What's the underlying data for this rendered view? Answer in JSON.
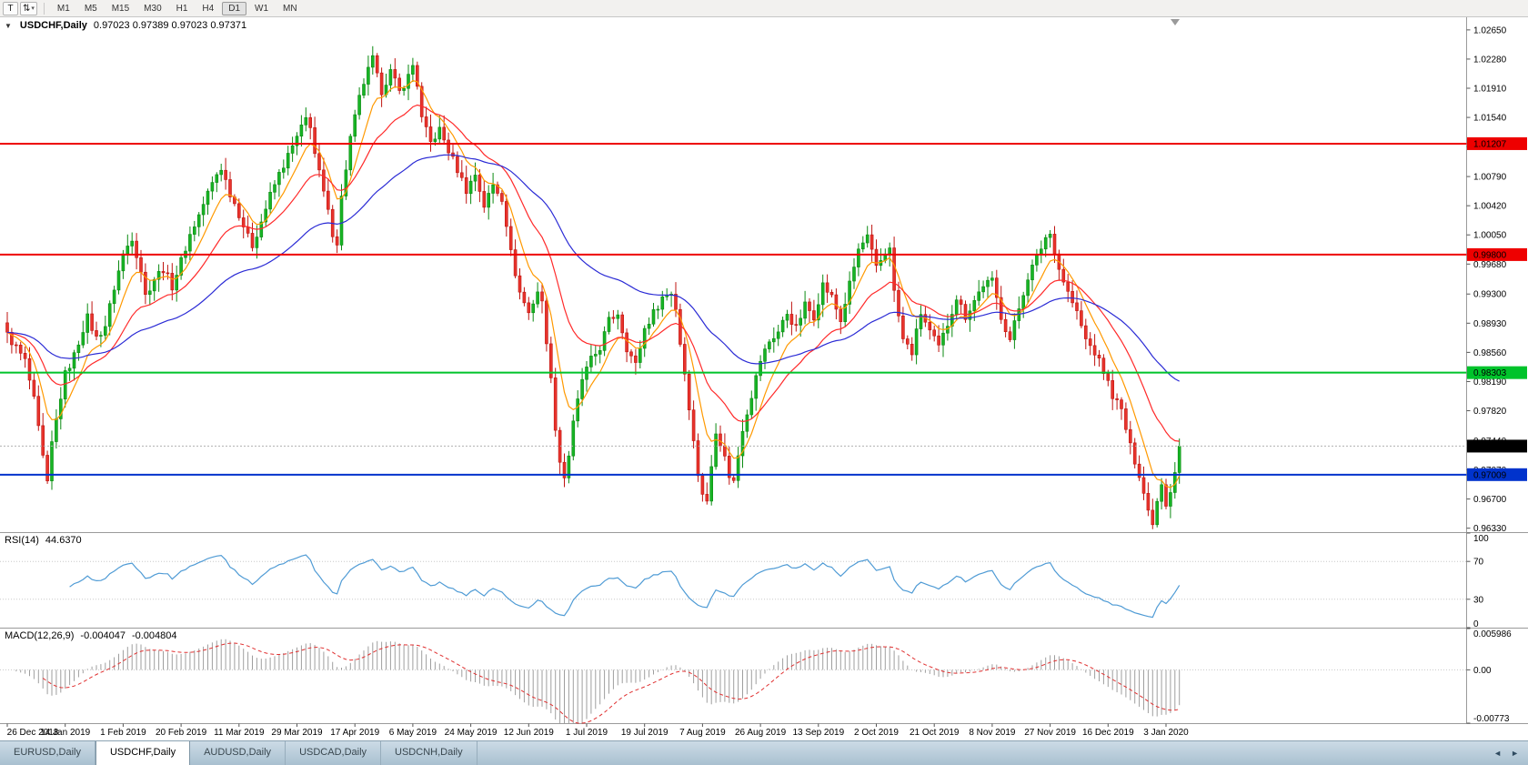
{
  "toolbar": {
    "tool_button_label": "T",
    "timeframes": [
      "M1",
      "M5",
      "M15",
      "M30",
      "H1",
      "H4",
      "D1",
      "W1",
      "MN"
    ],
    "active_timeframe": "D1"
  },
  "icons": {
    "cursor_tool": "⇅",
    "dropdown_caret": "▾",
    "collapse_indicators": "▼",
    "tabs_scroll_left": "◄",
    "tabs_scroll_right": "►"
  },
  "chart_data": {
    "type": "candlestick",
    "title": "USDCHF,Daily",
    "symbol": "USDCHF",
    "timeframe": "Daily",
    "ohlc_text": "0.97023 0.97389 0.97023 0.97371",
    "open": 0.97023,
    "high": 0.97389,
    "low": 0.97023,
    "close": 0.97371,
    "price_range": [
      0.9628,
      1.0281
    ],
    "bars_total": 264,
    "x_label_step_bars": 13,
    "colors": {
      "up": "#17b425",
      "up_border": "#0b8a12",
      "down": "#e8332c",
      "down_border": "#bf1410",
      "bid_line": "#b0b0b0",
      "axis_line": "#9a9a9a",
      "axis_text": "#000000"
    },
    "y_ticks": [
      "1.02650",
      "1.02280",
      "1.01910",
      "1.01540",
      "1.01170",
      "1.00790",
      "1.00420",
      "1.00050",
      "0.99680",
      "0.99300",
      "0.98930",
      "0.98560",
      "0.98190",
      "0.97820",
      "0.97440",
      "0.97070",
      "0.96700",
      "0.96330"
    ],
    "x_labels": [
      "26 Dec 2018",
      "14 Jan 2019",
      "1 Feb 2019",
      "20 Feb 2019",
      "11 Mar 2019",
      "29 Mar 2019",
      "17 Apr 2019",
      "6 May 2019",
      "24 May 2019",
      "12 Jun 2019",
      "1 Jul 2019",
      "19 Jul 2019",
      "7 Aug 2019",
      "26 Aug 2019",
      "13 Sep 2019",
      "2 Oct 2019",
      "21 Oct 2019",
      "8 Nov 2019",
      "27 Nov 2019",
      "16 Dec 2019",
      "3 Jan 2020"
    ],
    "horizontal_lines": [
      {
        "value": 1.01207,
        "label": "1.01207",
        "color": "#ee0000"
      },
      {
        "value": 0.998,
        "label": "0.99800",
        "color": "#ee0000"
      },
      {
        "value": 0.98303,
        "label": "0.98303",
        "color": "#00c32b"
      },
      {
        "value": 0.97009,
        "label": "0.97009",
        "color": "#0033cc"
      }
    ],
    "current_price": {
      "value": 0.97371,
      "label": "0.97371",
      "label_bg": "#000000"
    },
    "moving_averages": [
      {
        "name": "fast",
        "period": 8,
        "color": "#ff9900"
      },
      {
        "name": "medium",
        "period": 21,
        "color": "#ff2a2a"
      },
      {
        "name": "slow",
        "period": 55,
        "color": "#2b2bd5"
      }
    ],
    "price_keypoints": [
      [
        0,
        0.9878
      ],
      [
        2,
        0.9862
      ],
      [
        4,
        0.9845
      ],
      [
        6,
        0.9795
      ],
      [
        8,
        0.9722
      ],
      [
        9,
        0.9688
      ],
      [
        10,
        0.974
      ],
      [
        12,
        0.98
      ],
      [
        13,
        0.9828
      ],
      [
        15,
        0.9852
      ],
      [
        17,
        0.9886
      ],
      [
        18,
        0.99
      ],
      [
        20,
        0.9874
      ],
      [
        22,
        0.989
      ],
      [
        24,
        0.9938
      ],
      [
        26,
        0.998
      ],
      [
        28,
        1.0002
      ],
      [
        30,
        0.996
      ],
      [
        31,
        0.9928
      ],
      [
        33,
        0.995
      ],
      [
        35,
        0.9962
      ],
      [
        37,
        0.994
      ],
      [
        39,
        0.9972
      ],
      [
        41,
        1.0005
      ],
      [
        43,
        1.003
      ],
      [
        45,
        1.0058
      ],
      [
        47,
        1.0082
      ],
      [
        48,
        1.009
      ],
      [
        50,
        1.0058
      ],
      [
        52,
        1.0032
      ],
      [
        54,
        1.0002
      ],
      [
        55,
        0.9992
      ],
      [
        57,
        1.0022
      ],
      [
        59,
        1.0055
      ],
      [
        61,
        1.0082
      ],
      [
        63,
        1.0105
      ],
      [
        65,
        1.0128
      ],
      [
        67,
        1.0152
      ],
      [
        68,
        1.0145
      ],
      [
        69,
        1.0108
      ],
      [
        71,
        1.0058
      ],
      [
        73,
        1.0008
      ],
      [
        74,
        0.9996
      ],
      [
        75,
        1.0052
      ],
      [
        77,
        1.0128
      ],
      [
        79,
        1.0178
      ],
      [
        80,
        1.0198
      ],
      [
        82,
        1.0228
      ],
      [
        83,
        1.0205
      ],
      [
        84,
        1.0188
      ],
      [
        86,
        1.0212
      ],
      [
        88,
        1.0186
      ],
      [
        90,
        1.0206
      ],
      [
        91,
        1.022
      ],
      [
        92,
        1.0196
      ],
      [
        93,
        1.0152
      ],
      [
        95,
        1.0122
      ],
      [
        97,
        1.0138
      ],
      [
        99,
        1.0112
      ],
      [
        101,
        1.0088
      ],
      [
        103,
        1.0062
      ],
      [
        105,
        1.0082
      ],
      [
        107,
        1.0042
      ],
      [
        109,
        1.0068
      ],
      [
        111,
        1.0052
      ],
      [
        112,
        1.002
      ],
      [
        113,
        0.9982
      ],
      [
        115,
        0.9932
      ],
      [
        117,
        0.9906
      ],
      [
        119,
        0.9934
      ],
      [
        120,
        0.9918
      ],
      [
        121,
        0.9872
      ],
      [
        122,
        0.982
      ],
      [
        123,
        0.9762
      ],
      [
        124,
        0.9718
      ],
      [
        125,
        0.9698
      ],
      [
        126,
        0.9726
      ],
      [
        127,
        0.9765
      ],
      [
        129,
        0.9822
      ],
      [
        131,
        0.9846
      ],
      [
        133,
        0.9862
      ],
      [
        135,
        0.9896
      ],
      [
        137,
        0.9906
      ],
      [
        139,
        0.9862
      ],
      [
        141,
        0.984
      ],
      [
        143,
        0.9886
      ],
      [
        145,
        0.9906
      ],
      [
        147,
        0.9926
      ],
      [
        149,
        0.9932
      ],
      [
        150,
        0.9912
      ],
      [
        151,
        0.9868
      ],
      [
        152,
        0.983
      ],
      [
        153,
        0.9788
      ],
      [
        154,
        0.9742
      ],
      [
        155,
        0.9702
      ],
      [
        156,
        0.9678
      ],
      [
        157,
        0.9665
      ],
      [
        158,
        0.9712
      ],
      [
        159,
        0.9758
      ],
      [
        160,
        0.9742
      ],
      [
        161,
        0.9722
      ],
      [
        162,
        0.97
      ],
      [
        163,
        0.9692
      ],
      [
        164,
        0.9726
      ],
      [
        165,
        0.976
      ],
      [
        167,
        0.9802
      ],
      [
        169,
        0.9846
      ],
      [
        171,
        0.987
      ],
      [
        173,
        0.9882
      ],
      [
        175,
        0.9906
      ],
      [
        177,
        0.9886
      ],
      [
        179,
        0.9916
      ],
      [
        181,
        0.9902
      ],
      [
        183,
        0.9942
      ],
      [
        185,
        0.9926
      ],
      [
        187,
        0.9896
      ],
      [
        189,
        0.9942
      ],
      [
        191,
        0.9986
      ],
      [
        193,
        1.0002
      ],
      [
        194,
        0.9982
      ],
      [
        195,
        0.9962
      ],
      [
        197,
        0.9982
      ],
      [
        198,
        0.9992
      ],
      [
        199,
        0.9932
      ],
      [
        201,
        0.9872
      ],
      [
        203,
        0.9856
      ],
      [
        205,
        0.9906
      ],
      [
        207,
        0.9882
      ],
      [
        209,
        0.9862
      ],
      [
        211,
        0.9892
      ],
      [
        213,
        0.9926
      ],
      [
        215,
        0.9902
      ],
      [
        217,
        0.9922
      ],
      [
        219,
        0.9942
      ],
      [
        221,
        0.9946
      ],
      [
        223,
        0.9902
      ],
      [
        225,
        0.9872
      ],
      [
        227,
        0.9912
      ],
      [
        229,
        0.9952
      ],
      [
        231,
        0.9976
      ],
      [
        233,
        1.0002
      ],
      [
        234,
        1.0006
      ],
      [
        235,
        0.9986
      ],
      [
        236,
        0.9962
      ],
      [
        238,
        0.9932
      ],
      [
        240,
        0.9906
      ],
      [
        242,
        0.9872
      ],
      [
        244,
        0.9856
      ],
      [
        246,
        0.9832
      ],
      [
        248,
        0.9802
      ],
      [
        250,
        0.9782
      ],
      [
        252,
        0.9736
      ],
      [
        254,
        0.9702
      ],
      [
        255,
        0.9678
      ],
      [
        256,
        0.9655
      ],
      [
        257,
        0.9642
      ],
      [
        258,
        0.9668
      ],
      [
        259,
        0.9692
      ],
      [
        260,
        0.9664
      ],
      [
        261,
        0.9682
      ],
      [
        262,
        0.9706
      ],
      [
        263,
        0.97371
      ]
    ],
    "indicators": {
      "rsi": {
        "label": "RSI(14)",
        "value": "44.6370",
        "period": 14,
        "color": "#4f9bd5",
        "levels": [
          "100",
          "70",
          "30",
          "0"
        ],
        "range": [
          0,
          100
        ]
      },
      "macd": {
        "label": "MACD(12,26,9)",
        "main_value": "-0.004047",
        "signal_value": "-0.004804",
        "fast": 12,
        "slow": 26,
        "signal": 9,
        "histogram_color": "#9e9e9e",
        "signal_color": "#e03030",
        "levels": [
          "0.005986",
          "0.00",
          "-0.00773"
        ],
        "range": [
          -0.00773,
          0.005986
        ]
      }
    }
  },
  "tabs": {
    "items": [
      "EURUSD,Daily",
      "USDCHF,Daily",
      "AUDUSD,Daily",
      "USDCAD,Daily",
      "USDCNH,Daily"
    ],
    "active_index": 1
  }
}
